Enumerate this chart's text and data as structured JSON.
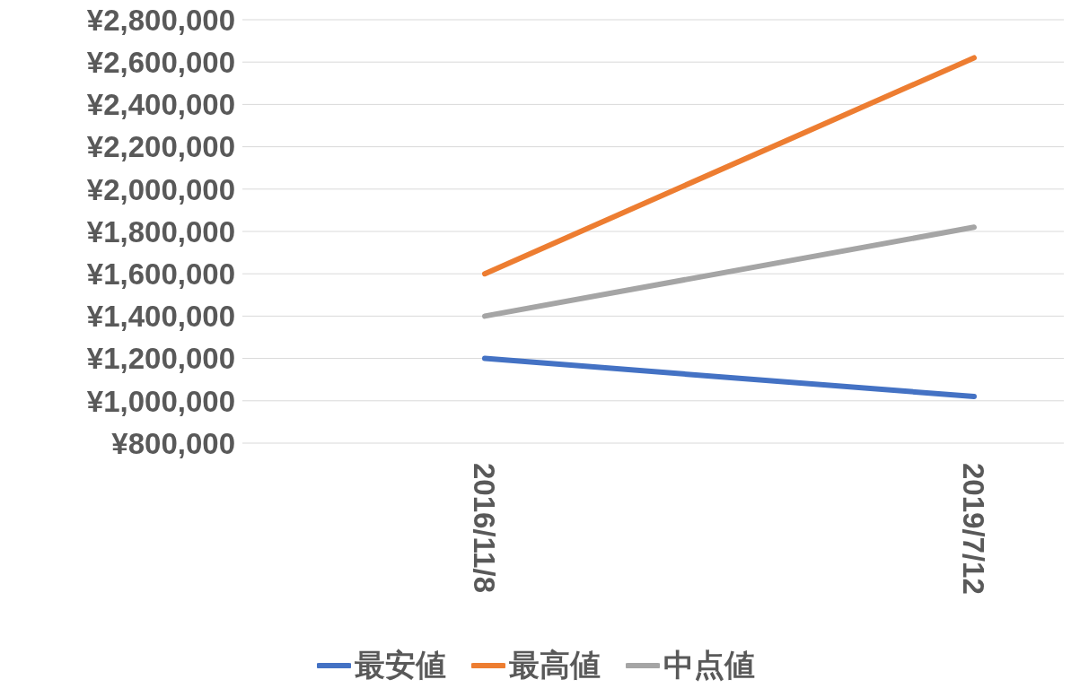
{
  "chart_data": {
    "type": "line",
    "categories": [
      "2016/11/8",
      "2019/7/12"
    ],
    "series": [
      {
        "name": "最安値",
        "color": "#4472c4",
        "values": [
          1200000,
          1020000
        ]
      },
      {
        "name": "最高値",
        "color": "#ed7d31",
        "values": [
          1600000,
          2620000
        ]
      },
      {
        "name": "中点値",
        "color": "#a5a5a5",
        "values": [
          1400000,
          1820000
        ]
      }
    ],
    "ylim": [
      800000,
      2800000
    ],
    "yticks": [
      {
        "value": 800000,
        "label": "¥800,000"
      },
      {
        "value": 1000000,
        "label": "¥1,000,000"
      },
      {
        "value": 1200000,
        "label": "¥1,200,000"
      },
      {
        "value": 1400000,
        "label": "¥1,400,000"
      },
      {
        "value": 1600000,
        "label": "¥1,600,000"
      },
      {
        "value": 1800000,
        "label": "¥1,800,000"
      },
      {
        "value": 2000000,
        "label": "¥2,000,000"
      },
      {
        "value": 2200000,
        "label": "¥2,200,000"
      },
      {
        "value": 2400000,
        "label": "¥2,400,000"
      },
      {
        "value": 2600000,
        "label": "¥2,600,000"
      },
      {
        "value": 2800000,
        "label": "¥2,800,000"
      }
    ],
    "grid": "y",
    "legend": "bottom",
    "marker": "none",
    "line_style": "solid"
  }
}
